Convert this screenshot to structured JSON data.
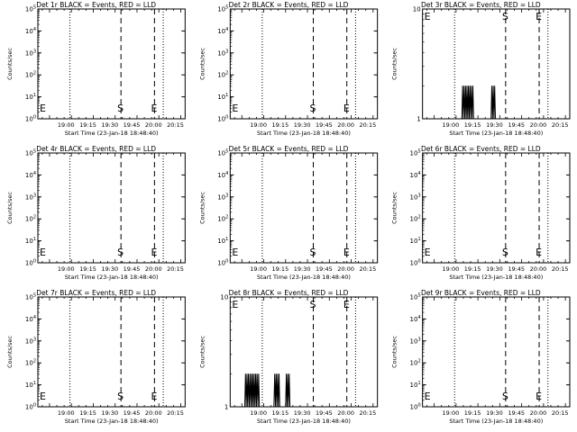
{
  "common": {
    "ylabel": "Counts/sec",
    "xlabel": "Start Time (23-Jan-18 18:48:40)",
    "x_ticks": [
      "19:00",
      "19:15",
      "19:30",
      "19:45",
      "20:00",
      "20:15"
    ],
    "markers": {
      "E": "E",
      "S": "S"
    },
    "colors": {
      "events": "#000000",
      "lld": "#ff0000"
    }
  },
  "chart_data": [
    {
      "type": "line",
      "title": "Det 1r BLACK = Events, RED = LLD",
      "y_scale": "log",
      "ylim": [
        1,
        100000
      ],
      "y_ticks": [
        "10^0",
        "10^1",
        "10^2",
        "10^3",
        "10^4",
        "10^5"
      ],
      "xlim_minutes": [
        -8,
        93
      ],
      "dotted_lines_minutes": [
        14,
        78
      ],
      "dashed_lines_minutes": [
        49,
        72
      ],
      "E_markers_minutes": [
        -8,
        69
      ],
      "S_marker_minutes": 49,
      "series": []
    },
    {
      "type": "line",
      "title": "Det 2r BLACK = Events, RED = LLD",
      "y_scale": "log",
      "ylim": [
        1,
        100000
      ],
      "y_ticks": [
        "10^0",
        "10^1",
        "10^2",
        "10^3",
        "10^4",
        "10^5"
      ],
      "xlim_minutes": [
        -8,
        93
      ],
      "dotted_lines_minutes": [
        14,
        78
      ],
      "dashed_lines_minutes": [
        49,
        72
      ],
      "E_markers_minutes": [
        -8,
        69
      ],
      "S_marker_minutes": 49,
      "series": []
    },
    {
      "type": "line",
      "title": "Det 3r BLACK = Events, RED = LLD",
      "y_scale": "log",
      "ylim": [
        1,
        10
      ],
      "y_ticks": [
        "1",
        "10"
      ],
      "xlim_minutes": [
        -8,
        93
      ],
      "dotted_lines_minutes": [
        14,
        78
      ],
      "dashed_lines_minutes": [
        49,
        72
      ],
      "E_markers_minutes": [
        -8,
        69
      ],
      "S_marker_minutes": 49,
      "series": [
        {
          "color": "#000000",
          "x": [
            19,
            19.5,
            20,
            20.5,
            21,
            21.5,
            22,
            22.5,
            23,
            23.5,
            24,
            24.5,
            25,
            25.5,
            26,
            26.5,
            27,
            27.5,
            39,
            39.5,
            40,
            40.5,
            41,
            41.5,
            42,
            42.5
          ],
          "y": [
            1,
            2,
            1,
            2,
            1,
            2,
            1,
            2,
            1,
            2,
            1,
            2,
            1,
            2,
            1,
            2,
            1,
            1,
            1,
            2,
            1,
            2,
            1,
            2,
            1,
            1
          ]
        }
      ]
    },
    {
      "type": "line",
      "title": "Det 4r BLACK = Events, RED = LLD",
      "y_scale": "log",
      "ylim": [
        1,
        100000
      ],
      "y_ticks": [
        "10^0",
        "10^1",
        "10^2",
        "10^3",
        "10^4",
        "10^5"
      ],
      "xlim_minutes": [
        -8,
        93
      ],
      "dotted_lines_minutes": [
        14,
        78
      ],
      "dashed_lines_minutes": [
        49,
        72
      ],
      "E_markers_minutes": [
        -8,
        69
      ],
      "S_marker_minutes": 49,
      "series": []
    },
    {
      "type": "line",
      "title": "Det 5r BLACK = Events, RED = LLD",
      "y_scale": "log",
      "ylim": [
        1,
        100000
      ],
      "y_ticks": [
        "10^0",
        "10^1",
        "10^2",
        "10^3",
        "10^4",
        "10^5"
      ],
      "xlim_minutes": [
        -8,
        93
      ],
      "dotted_lines_minutes": [
        14,
        78
      ],
      "dashed_lines_minutes": [
        49,
        72
      ],
      "E_markers_minutes": [
        -8,
        69
      ],
      "S_marker_minutes": 49,
      "series": []
    },
    {
      "type": "line",
      "title": "Det 6r BLACK = Events, RED = LLD",
      "y_scale": "log",
      "ylim": [
        1,
        100000
      ],
      "y_ticks": [
        "10^0",
        "10^1",
        "10^2",
        "10^3",
        "10^4",
        "10^5"
      ],
      "xlim_minutes": [
        -8,
        93
      ],
      "dotted_lines_minutes": [
        14,
        78
      ],
      "dashed_lines_minutes": [
        49,
        72
      ],
      "E_markers_minutes": [
        -8,
        69
      ],
      "S_marker_minutes": 49,
      "series": []
    },
    {
      "type": "line",
      "title": "Det 7r BLACK = Events, RED = LLD",
      "y_scale": "log",
      "ylim": [
        1,
        100000
      ],
      "y_ticks": [
        "10^0",
        "10^1",
        "10^2",
        "10^3",
        "10^4",
        "10^5"
      ],
      "xlim_minutes": [
        -8,
        93
      ],
      "dotted_lines_minutes": [
        14,
        78
      ],
      "dashed_lines_minutes": [
        49,
        72
      ],
      "E_markers_minutes": [
        -8,
        69
      ],
      "S_marker_minutes": 49,
      "series": []
    },
    {
      "type": "line",
      "title": "Det 8r BLACK = Events, RED = LLD",
      "y_scale": "log",
      "ylim": [
        1,
        10
      ],
      "y_ticks": [
        "1",
        "10"
      ],
      "xlim_minutes": [
        -8,
        93
      ],
      "dotted_lines_minutes": [
        14,
        78
      ],
      "dashed_lines_minutes": [
        49,
        72
      ],
      "E_markers_minutes": [
        -8,
        69
      ],
      "S_marker_minutes": 49,
      "series": [
        {
          "color": "#000000",
          "x": [
            2,
            2.5,
            3,
            3.5,
            4,
            4.5,
            5,
            5.5,
            6,
            6.5,
            7,
            7.5,
            8,
            8.5,
            9,
            9.5,
            10,
            10.5,
            11,
            11.5,
            12,
            12.5,
            22,
            22.5,
            23,
            23.5,
            24,
            24.5,
            25,
            25.5,
            26,
            26.5,
            30,
            30.5,
            31,
            31.5,
            32,
            32.5,
            33,
            33.5
          ],
          "y": [
            1,
            2,
            1,
            2,
            1,
            2,
            1,
            2,
            1,
            2,
            1,
            2,
            1,
            2,
            1,
            2,
            1,
            2,
            1,
            2,
            1,
            1,
            1,
            2,
            1,
            2,
            1,
            2,
            1,
            2,
            1,
            1,
            1,
            2,
            1,
            2,
            1,
            2,
            1,
            1
          ]
        }
      ]
    },
    {
      "type": "line",
      "title": "Det 9r BLACK = Events, RED = LLD",
      "y_scale": "log",
      "ylim": [
        1,
        100000
      ],
      "y_ticks": [
        "10^0",
        "10^1",
        "10^2",
        "10^3",
        "10^4",
        "10^5"
      ],
      "xlim_minutes": [
        -8,
        93
      ],
      "dotted_lines_minutes": [
        14,
        78
      ],
      "dashed_lines_minutes": [
        49,
        72
      ],
      "E_markers_minutes": [
        -8,
        69
      ],
      "S_marker_minutes": 49,
      "series": []
    }
  ]
}
